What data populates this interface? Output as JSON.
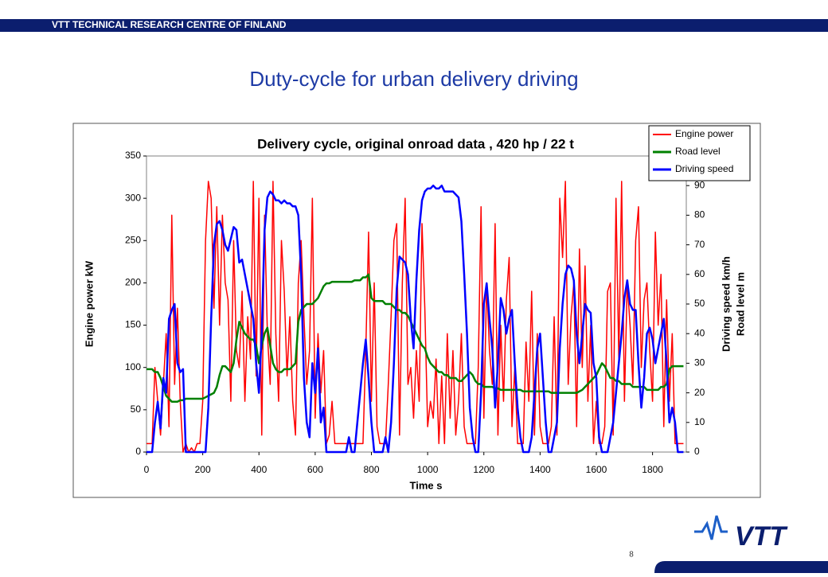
{
  "header": {
    "org": "VTT TECHNICAL RESEARCH CENTRE OF FINLAND"
  },
  "slide": {
    "title": "Duty-cycle for urban delivery driving",
    "page": "8"
  },
  "logo": {
    "text": "VTT"
  },
  "chart_data": {
    "type": "line",
    "title": "Delivery cycle, original onroad data , 420 hp / 22 t",
    "xlabel": "Time s",
    "ylabel": "Engine power kW",
    "y2labels": [
      "Driving speed km/h",
      "Road level m"
    ],
    "xlim": [
      0,
      1920
    ],
    "xticks": [
      0,
      200,
      400,
      600,
      800,
      1000,
      1200,
      1400,
      1600,
      1800
    ],
    "ylim": [
      0,
      350
    ],
    "yticks": [
      0,
      50,
      100,
      150,
      200,
      250,
      300,
      350
    ],
    "y2lim": [
      0,
      100
    ],
    "y2ticks": [
      0,
      10,
      20,
      30,
      40,
      50,
      60,
      70,
      80,
      90
    ],
    "legend": "top-right",
    "x": [
      0,
      10,
      20,
      30,
      40,
      50,
      60,
      70,
      80,
      90,
      100,
      110,
      120,
      130,
      140,
      150,
      160,
      170,
      180,
      190,
      200,
      210,
      220,
      230,
      240,
      250,
      260,
      270,
      280,
      290,
      300,
      310,
      320,
      330,
      340,
      350,
      360,
      370,
      380,
      390,
      400,
      410,
      420,
      430,
      440,
      450,
      460,
      470,
      480,
      490,
      500,
      510,
      520,
      530,
      540,
      550,
      560,
      570,
      580,
      590,
      600,
      610,
      620,
      630,
      640,
      650,
      660,
      670,
      680,
      690,
      700,
      710,
      720,
      730,
      740,
      750,
      760,
      770,
      780,
      790,
      800,
      810,
      820,
      830,
      840,
      850,
      860,
      870,
      880,
      890,
      900,
      910,
      920,
      930,
      940,
      950,
      960,
      970,
      980,
      990,
      1000,
      1010,
      1020,
      1030,
      1040,
      1050,
      1060,
      1070,
      1080,
      1090,
      1100,
      1110,
      1120,
      1130,
      1140,
      1150,
      1160,
      1170,
      1180,
      1190,
      1200,
      1210,
      1220,
      1230,
      1240,
      1250,
      1260,
      1270,
      1280,
      1290,
      1300,
      1310,
      1320,
      1330,
      1340,
      1350,
      1360,
      1370,
      1380,
      1390,
      1400,
      1410,
      1420,
      1430,
      1440,
      1450,
      1460,
      1470,
      1480,
      1490,
      1500,
      1510,
      1520,
      1530,
      1540,
      1550,
      1560,
      1570,
      1580,
      1590,
      1600,
      1610,
      1620,
      1630,
      1640,
      1650,
      1660,
      1670,
      1680,
      1690,
      1700,
      1710,
      1720,
      1730,
      1740,
      1750,
      1760,
      1770,
      1780,
      1790,
      1800,
      1810,
      1820,
      1830,
      1840,
      1850,
      1860,
      1870,
      1880,
      1890,
      1900,
      1910
    ],
    "series": [
      {
        "name": "Engine power",
        "color": "#ff0000",
        "width": 1.5,
        "values": [
          10,
          10,
          10,
          100,
          60,
          20,
          80,
          140,
          30,
          280,
          80,
          170,
          60,
          0,
          10,
          0,
          5,
          0,
          10,
          10,
          60,
          250,
          320,
          300,
          170,
          290,
          150,
          280,
          200,
          180,
          60,
          250,
          120,
          100,
          190,
          60,
          160,
          110,
          320,
          90,
          300,
          20,
          280,
          140,
          80,
          320,
          140,
          60,
          250,
          190,
          90,
          160,
          60,
          20,
          200,
          250,
          160,
          80,
          120,
          300,
          40,
          140,
          70,
          120,
          10,
          20,
          60,
          10,
          10,
          10,
          10,
          10,
          10,
          10,
          10,
          10,
          10,
          10,
          120,
          260,
          60,
          200,
          30,
          10,
          10,
          10,
          80,
          160,
          250,
          270,
          20,
          200,
          300,
          80,
          100,
          40,
          120,
          60,
          270,
          170,
          30,
          60,
          40,
          110,
          10,
          90,
          10,
          140,
          40,
          120,
          20,
          60,
          140,
          30,
          10,
          10,
          10,
          10,
          100,
          290,
          40,
          200,
          120,
          80,
          270,
          20,
          150,
          60,
          180,
          230,
          30,
          100,
          10,
          10,
          10,
          130,
          60,
          190,
          20,
          140,
          30,
          10,
          10,
          10,
          30,
          160,
          20,
          300,
          230,
          320,
          80,
          160,
          200,
          30,
          240,
          100,
          220,
          60,
          150,
          10,
          60,
          10,
          10,
          30,
          190,
          200,
          20,
          300,
          110,
          320,
          60,
          200,
          150,
          80,
          250,
          290,
          100,
          180,
          200,
          120,
          60,
          260,
          150,
          210,
          30,
          180,
          60,
          140,
          10,
          10,
          10,
          10
        ]
      },
      {
        "name": "Road level",
        "color": "#008000",
        "width": 2.5,
        "axis": "y2",
        "values": [
          28,
          28,
          28,
          27,
          27,
          25,
          22,
          19,
          18,
          17,
          17,
          17,
          17.5,
          17.5,
          18,
          18,
          18,
          18,
          18,
          18,
          18,
          18.5,
          19,
          19.5,
          20,
          22,
          26,
          29,
          29,
          28,
          27,
          30,
          38,
          44,
          42,
          40,
          39,
          38,
          38,
          36,
          30,
          36,
          40,
          42,
          36,
          30,
          28,
          27,
          27,
          28,
          28,
          28,
          29,
          30,
          44,
          48,
          49,
          50,
          50,
          50,
          51,
          52,
          54,
          56,
          57,
          57,
          57.5,
          57.5,
          57.5,
          57.5,
          57.5,
          57.5,
          57.5,
          57.5,
          58,
          58,
          58,
          59,
          59,
          60,
          52,
          51,
          51,
          51,
          51,
          50,
          50,
          50,
          49,
          48,
          48,
          47,
          47,
          46,
          44,
          42,
          40,
          38,
          36,
          35,
          32,
          30,
          29,
          28,
          27,
          27,
          26,
          26,
          25,
          25,
          25,
          24,
          24,
          25,
          26,
          27,
          26,
          24,
          23,
          23,
          22,
          22,
          22,
          22,
          21.5,
          21.5,
          21,
          21,
          21,
          21,
          21,
          21,
          21,
          21,
          20.5,
          20.5,
          20.5,
          20.5,
          20.5,
          20.5,
          20.5,
          20.5,
          20.5,
          20.5,
          20,
          20,
          20,
          20,
          20,
          20,
          20,
          20,
          20,
          20,
          20.5,
          21,
          22,
          23,
          24,
          25,
          26,
          28,
          30,
          29,
          27,
          25,
          25,
          24,
          24,
          23,
          23,
          23,
          23,
          22,
          22,
          22,
          22,
          22,
          21,
          21,
          21,
          21,
          21,
          22,
          22,
          23,
          28,
          29,
          29,
          29,
          29,
          29
        ]
      },
      {
        "name": "Driving speed",
        "color": "#0000ff",
        "width": 2.5,
        "axis": "y2",
        "values": [
          0,
          0,
          0,
          10,
          17,
          8,
          25,
          20,
          45,
          48,
          50,
          30,
          27,
          28,
          0,
          0,
          0,
          0,
          0,
          0,
          0,
          0,
          15,
          45,
          70,
          77,
          78,
          75,
          70,
          68,
          72,
          76,
          75,
          64,
          65,
          60,
          55,
          50,
          45,
          30,
          20,
          40,
          75,
          86,
          88,
          87,
          85,
          85,
          84,
          85,
          84,
          84,
          83,
          83,
          80,
          60,
          25,
          10,
          5,
          30,
          20,
          35,
          10,
          15,
          0,
          0,
          0,
          0,
          0,
          0,
          0,
          0,
          5,
          0,
          0,
          10,
          20,
          30,
          38,
          25,
          10,
          0,
          0,
          0,
          0,
          5,
          0,
          10,
          30,
          55,
          66,
          65,
          64,
          60,
          45,
          35,
          58,
          75,
          85,
          88,
          89,
          89,
          90,
          89,
          89,
          90,
          88,
          88,
          88,
          88,
          87,
          86,
          78,
          60,
          40,
          15,
          5,
          0,
          0,
          20,
          50,
          57,
          45,
          35,
          15,
          30,
          52,
          48,
          40,
          45,
          48,
          30,
          15,
          5,
          0,
          0,
          0,
          5,
          20,
          35,
          40,
          25,
          10,
          0,
          0,
          5,
          10,
          35,
          50,
          60,
          63,
          62,
          58,
          40,
          30,
          40,
          50,
          48,
          47,
          30,
          25,
          5,
          0,
          0,
          0,
          5,
          10,
          20,
          30,
          40,
          52,
          58,
          50,
          48,
          48,
          30,
          15,
          25,
          40,
          42,
          38,
          30,
          35,
          40,
          45,
          30,
          10,
          15,
          10,
          0,
          0,
          0
        ]
      }
    ]
  }
}
